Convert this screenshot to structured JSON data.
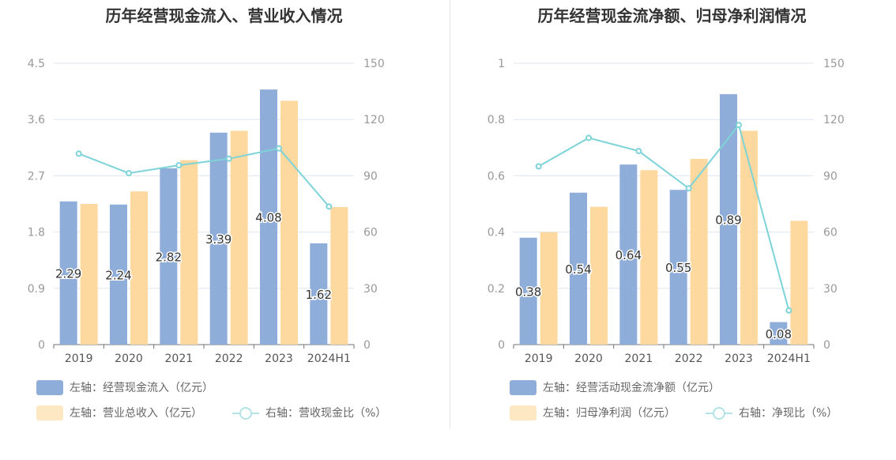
{
  "colors": {
    "bar_primary": "#8fadd9",
    "bar_secondary": "#fdd9a0",
    "line": "#7dd3d8"
  },
  "chart_data": [
    {
      "type": "bar",
      "title": "历年经营现金流入、营业收入情况",
      "categories": [
        "2019",
        "2020",
        "2021",
        "2022",
        "2023",
        "2024H1"
      ],
      "left_axis": {
        "ylim": [
          0,
          4.5
        ],
        "ticks": [
          "0",
          "0.9",
          "1.8",
          "2.7",
          "3.6",
          "4.5"
        ]
      },
      "right_axis": {
        "ylim": [
          0,
          150
        ],
        "ticks": [
          "0",
          "30",
          "60",
          "90",
          "120",
          "150"
        ]
      },
      "series": [
        {
          "name": "左轴：经营现金流入（亿元）",
          "type": "bar",
          "axis": "left",
          "values": [
            2.29,
            2.24,
            2.82,
            3.39,
            4.08,
            1.62
          ],
          "labels": [
            "2.29",
            "2.24",
            "2.82",
            "3.39",
            "4.08",
            "1.62"
          ]
        },
        {
          "name": "左轴：营业总收入（亿元）",
          "type": "bar",
          "axis": "left",
          "values": [
            2.25,
            2.45,
            2.95,
            3.42,
            3.9,
            2.2
          ]
        },
        {
          "name": "右轴：营收现金比（%）",
          "type": "line",
          "axis": "right",
          "values": [
            101.8,
            91.4,
            95.6,
            99.1,
            104.6,
            73.6
          ]
        }
      ]
    },
    {
      "type": "bar",
      "title": "历年经营现金流净额、归母净利润情况",
      "categories": [
        "2019",
        "2020",
        "2021",
        "2022",
        "2023",
        "2024H1"
      ],
      "left_axis": {
        "ylim": [
          0,
          1
        ],
        "ticks": [
          "0",
          "0.2",
          "0.4",
          "0.6",
          "0.8",
          "1"
        ]
      },
      "right_axis": {
        "ylim": [
          0,
          150
        ],
        "ticks": [
          "0",
          "30",
          "60",
          "90",
          "120",
          "150"
        ]
      },
      "series": [
        {
          "name": "左轴：经营活动现金流净额（亿元）",
          "type": "bar",
          "axis": "left",
          "values": [
            0.38,
            0.54,
            0.64,
            0.55,
            0.89,
            0.08
          ],
          "labels": [
            "0.38",
            "0.54",
            "0.64",
            "0.55",
            "0.89",
            "0.08"
          ]
        },
        {
          "name": "左轴：归母净利润（亿元）",
          "type": "bar",
          "axis": "left",
          "values": [
            0.4,
            0.49,
            0.62,
            0.66,
            0.76,
            0.44
          ]
        },
        {
          "name": "右轴：净现比（%）",
          "type": "line",
          "axis": "right",
          "values": [
            95.0,
            110.2,
            103.2,
            83.3,
            117.1,
            18.2
          ]
        }
      ]
    }
  ]
}
